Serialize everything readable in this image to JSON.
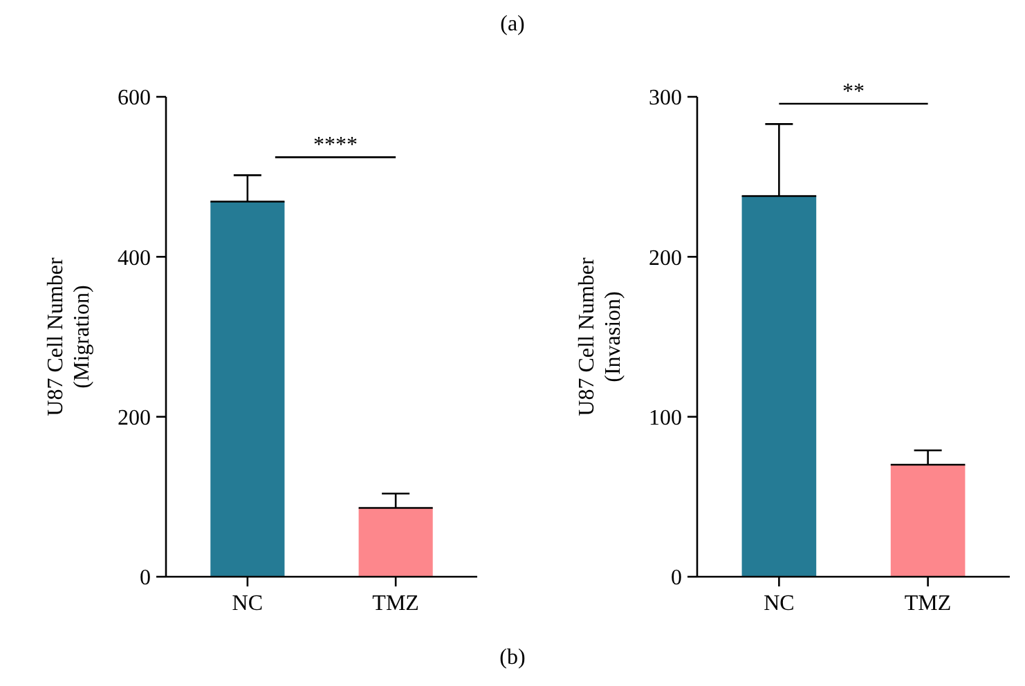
{
  "chart_data": [
    {
      "type": "bar",
      "categories": [
        "NC",
        "TMZ"
      ],
      "colors": [
        "#257b95",
        "#fd878c"
      ],
      "values": [
        469,
        86
      ],
      "errors": [
        [
          469,
          502
        ],
        [
          86,
          104
        ]
      ],
      "ylabel": "U87 Cell Number\n(Migration)",
      "ylim": [
        0,
        600
      ],
      "yticks": [
        0,
        200,
        400,
        600
      ],
      "grid": false,
      "annotations": [
        "(a)",
        "****"
      ]
    },
    {
      "type": "bar",
      "categories": [
        "NC",
        "TMZ"
      ],
      "colors": [
        "#257b95",
        "#fd878c"
      ],
      "values": [
        238,
        70
      ],
      "errors": [
        [
          238,
          283
        ],
        [
          70,
          79
        ]
      ],
      "ylabel": "U87 Cell Number\n(Invasion)",
      "ylim": [
        0,
        300
      ],
      "yticks": [
        0,
        100,
        200,
        300
      ],
      "grid": false,
      "annotations": [
        "**",
        "(b)"
      ]
    }
  ]
}
